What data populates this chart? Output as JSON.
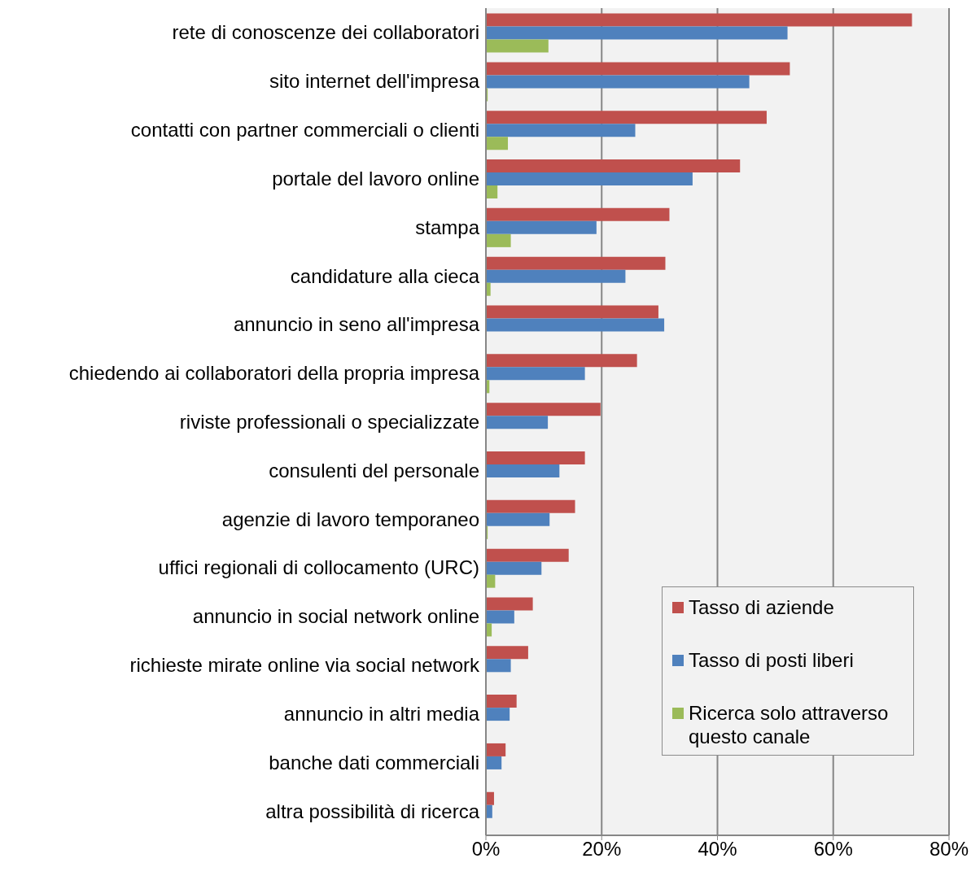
{
  "chart_data": {
    "type": "bar",
    "orientation": "horizontal",
    "categories": [
      "rete di conoscenze dei collaboratori",
      "sito internet dell'impresa",
      "contatti con partner commerciali o clienti",
      "portale del lavoro online",
      "stampa",
      "candidature alla cieca",
      "annuncio in seno all'impresa",
      "chiedendo ai collaboratori della propria impresa",
      "riviste professionali o specializzate",
      "consulenti del personale",
      "agenzie di lavoro temporaneo",
      "uffici regionali di collocamento (URC)",
      "annuncio in social network online",
      "richieste mirate online via social network",
      "annuncio in altri media",
      "banche dati commerciali",
      "altra possibilità di ricerca"
    ],
    "series": [
      {
        "name": "Tasso di aziende",
        "color": "#c0504d",
        "values": [
          73.6,
          52.5,
          48.5,
          43.9,
          31.7,
          31.0,
          29.8,
          26.1,
          19.8,
          17.1,
          15.4,
          14.3,
          8.1,
          7.3,
          5.3,
          3.4,
          1.4
        ]
      },
      {
        "name": "Tasso di posti liberi",
        "color": "#4f81bd",
        "values": [
          52.1,
          45.5,
          25.8,
          35.7,
          19.1,
          24.1,
          30.8,
          17.1,
          10.7,
          12.7,
          11.0,
          9.6,
          4.9,
          4.3,
          4.1,
          2.7,
          1.1
        ]
      },
      {
        "name": "Ricerca solo attraverso questo canale",
        "color": "#9bbb59",
        "values": [
          10.8,
          0.3,
          3.8,
          2.0,
          4.3,
          0.8,
          0.1,
          0.6,
          0,
          0,
          0.3,
          1.6,
          1.0,
          0,
          0,
          0,
          0
        ]
      }
    ],
    "xlim": [
      0,
      80
    ],
    "xticks": [
      {
        "value": 0,
        "label": "0%"
      },
      {
        "value": 20,
        "label": "20%"
      },
      {
        "value": 40,
        "label": "40%"
      },
      {
        "value": 60,
        "label": "60%"
      },
      {
        "value": 80,
        "label": "80%"
      }
    ],
    "grid": "x",
    "legend": "bottom right"
  }
}
